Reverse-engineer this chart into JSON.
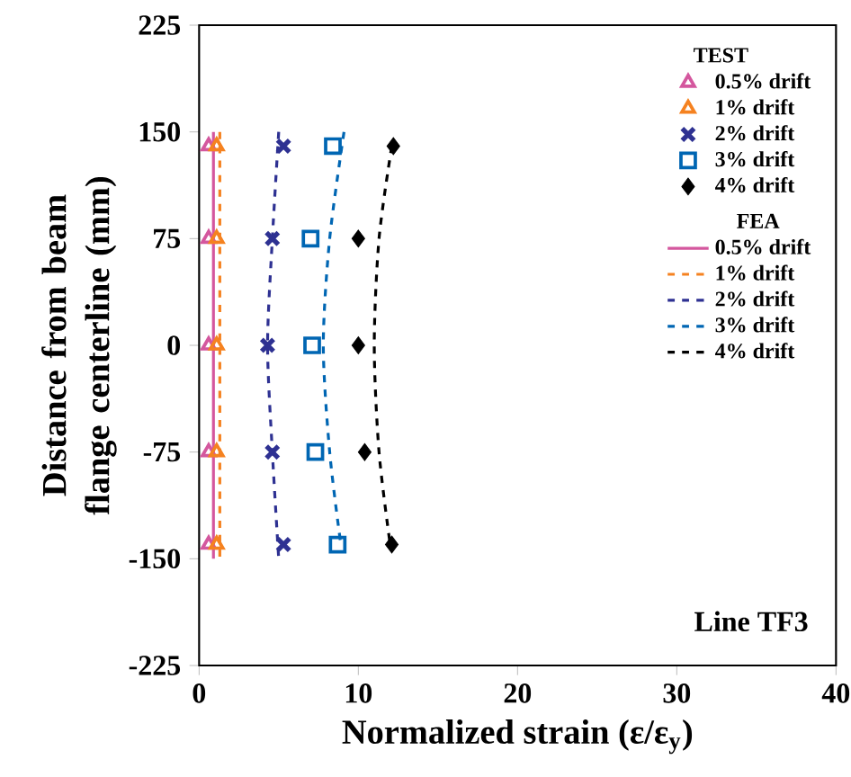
{
  "chart_data": {
    "type": "scatter",
    "xlabel": "Normalized strain (ε/ε$_{y}$)",
    "ylabel": "Distance from beam flange centerline (mm)",
    "annotations": [
      "TEST",
      "FEA",
      "Line TF3"
    ],
    "xlim": [
      0,
      40
    ],
    "xticks": [
      0,
      10,
      20,
      30,
      40
    ],
    "ylim": [
      -225,
      225
    ],
    "yticks": [
      -225,
      -150,
      -75,
      0,
      75,
      150,
      225
    ],
    "grid": false,
    "legend": "top right",
    "series": [
      {
        "name": "0.5% drift",
        "marker": "triangle",
        "color": "#d4579e",
        "x": [
          0.6,
          0.6,
          0.6,
          0.6,
          0.6
        ],
        "values": [
          140,
          75,
          0,
          -75,
          -140
        ]
      },
      {
        "name": "1% drift",
        "marker": "triangle",
        "color": "#f58220",
        "x": [
          1.1,
          1.1,
          1.1,
          1.1,
          1.1
        ],
        "values": [
          140,
          75,
          0,
          -75,
          -140
        ]
      },
      {
        "name": "2% drift",
        "marker": "cross",
        "color": "#2e3192",
        "x": [
          5.3,
          4.6,
          4.3,
          4.6,
          5.3
        ],
        "values": [
          140,
          75,
          0,
          -75,
          -140
        ]
      },
      {
        "name": "3% drift",
        "marker": "square",
        "color": "#0066b3",
        "x": [
          8.4,
          7.0,
          7.1,
          7.3,
          8.7
        ],
        "values": [
          140,
          75,
          0,
          -75,
          -140
        ]
      },
      {
        "name": "4% drift",
        "marker": "diamond",
        "color": "#000000",
        "x": [
          12.2,
          10.0,
          10.0,
          10.4,
          12.1
        ],
        "values": [
          140,
          75,
          0,
          -75,
          -140
        ]
      },
      {
        "name": "0.5% drift",
        "type": "line",
        "line_style": "solid",
        "color": "#d4579e",
        "x": [
          0.9,
          0.9,
          0.9,
          0.9,
          0.9
        ],
        "values": [
          150,
          75,
          0,
          -75,
          -150
        ]
      },
      {
        "name": "1% drift",
        "type": "line",
        "line_style": "dashed",
        "color": "#f58220",
        "x": [
          1.3,
          1.3,
          1.3,
          1.3,
          1.3
        ],
        "values": [
          150,
          75,
          0,
          -75,
          -150
        ]
      },
      {
        "name": "2% drift",
        "type": "line",
        "line_style": "dashed",
        "color": "#2e3192",
        "x": [
          5.0,
          4.6,
          4.3,
          4.6,
          5.0
        ],
        "values": [
          150,
          75,
          0,
          -75,
          -150
        ]
      },
      {
        "name": "3% drift",
        "type": "line",
        "line_style": "dashed",
        "color": "#0066b3",
        "x": [
          9.1,
          8.2,
          7.8,
          8.2,
          8.9
        ],
        "values": [
          150,
          75,
          0,
          -75,
          -140
        ]
      },
      {
        "name": "4% drift",
        "type": "line",
        "line_style": "dashed",
        "color": "#000000",
        "x": [
          12.1,
          11.3,
          11.0,
          11.3,
          12.0
        ],
        "values": [
          140,
          75,
          0,
          -75,
          -140
        ]
      }
    ]
  }
}
